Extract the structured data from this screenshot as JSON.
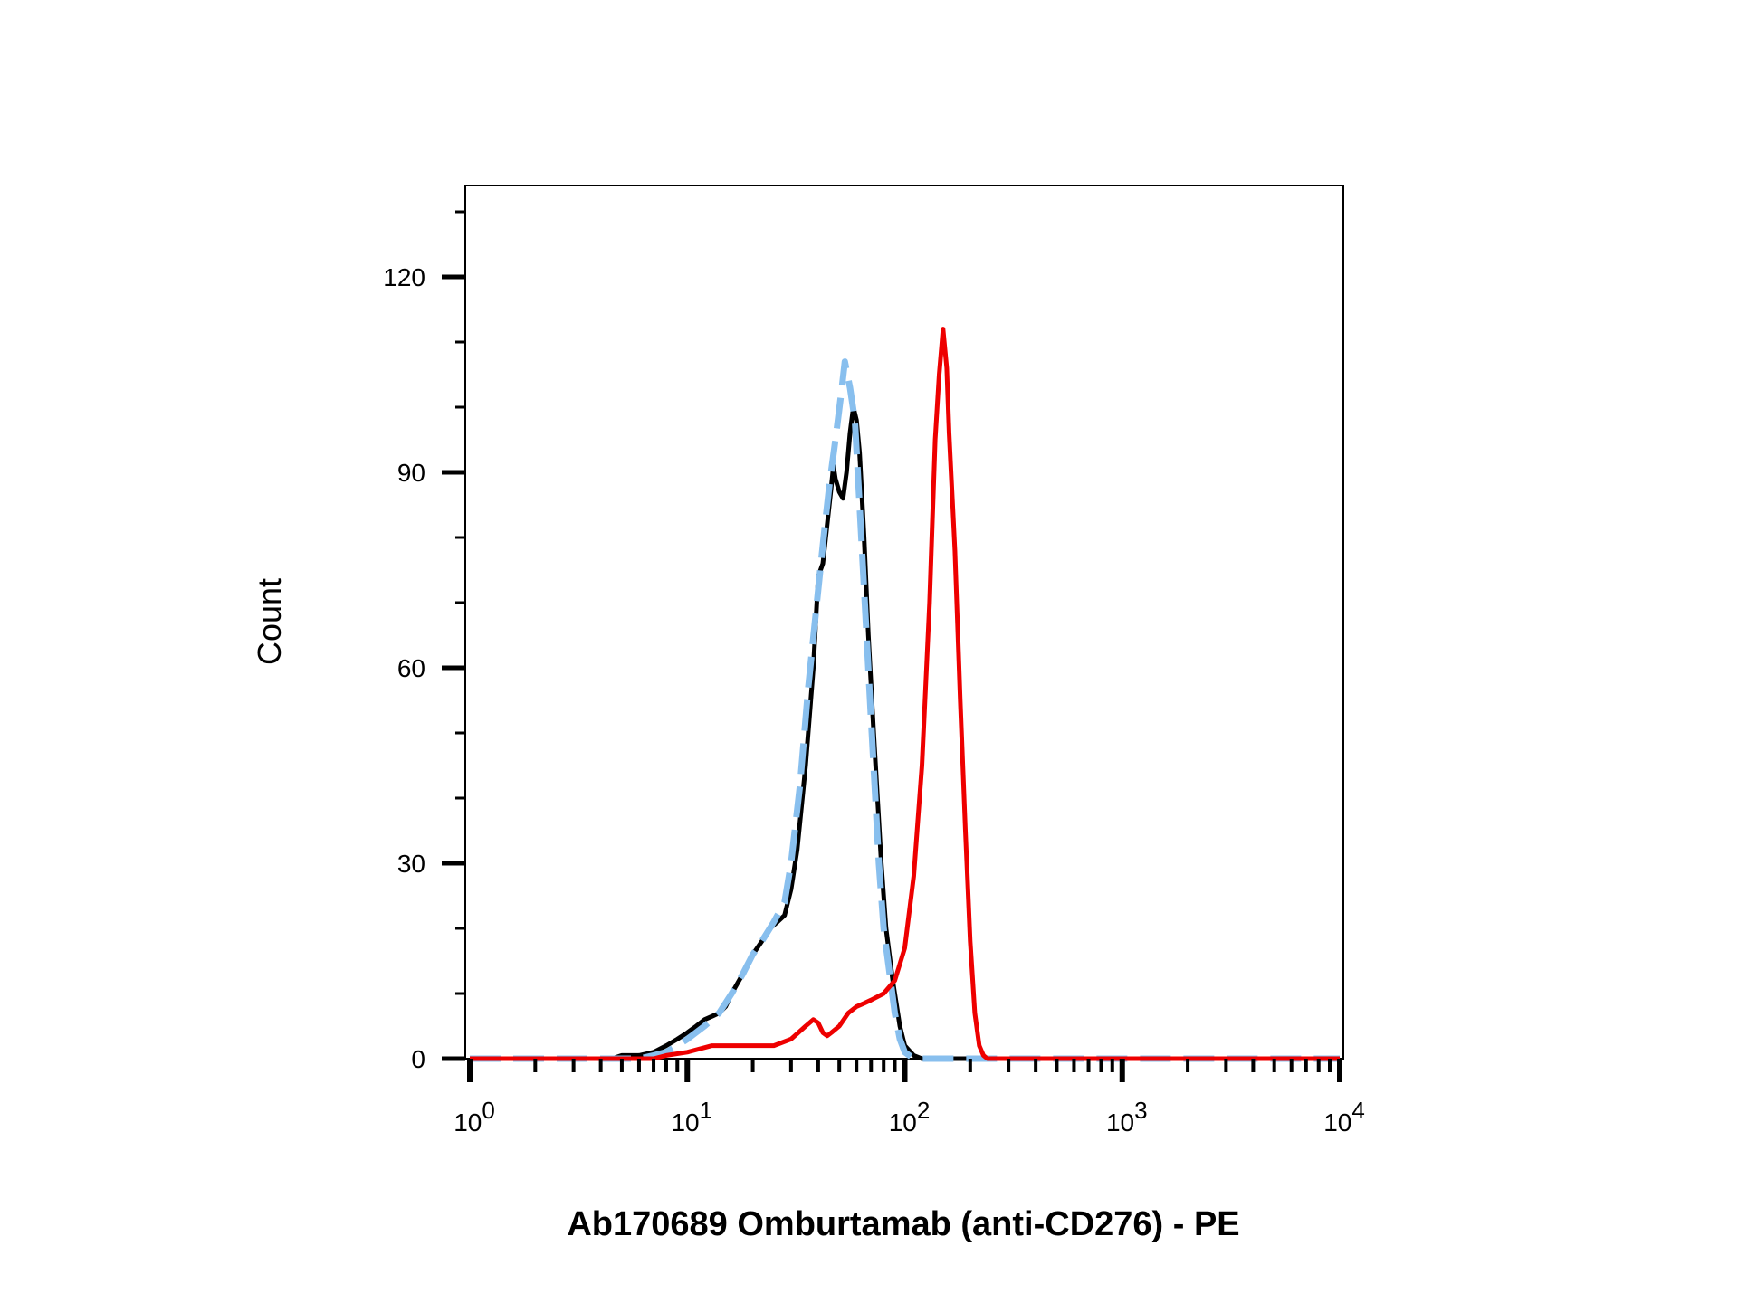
{
  "chart_data": {
    "type": "line",
    "title": "",
    "xlabel": "Ab170689 Omburtamab (anti-CD276) - PE",
    "ylabel": "Count",
    "x_scale": "log",
    "xlim": [
      1,
      10000
    ],
    "ylim": [
      0,
      135
    ],
    "x_ticks": [
      {
        "base": "10",
        "exp": "0"
      },
      {
        "base": "10",
        "exp": "1"
      },
      {
        "base": "10",
        "exp": "2"
      },
      {
        "base": "10",
        "exp": "3"
      },
      {
        "base": "10",
        "exp": "4"
      }
    ],
    "y_ticks": [
      "0",
      "30",
      "60",
      "90",
      "120"
    ],
    "y_tick_values": [
      0,
      30,
      60,
      90,
      120
    ],
    "grid": false,
    "legend": "none",
    "series": [
      {
        "color": "#000000",
        "style": "solid",
        "points": [
          [
            1,
            0
          ],
          [
            4.5,
            0
          ],
          [
            5,
            0.5
          ],
          [
            6,
            0.5
          ],
          [
            7,
            1
          ],
          [
            8,
            2
          ],
          [
            9,
            3
          ],
          [
            10,
            4
          ],
          [
            11,
            5
          ],
          [
            12,
            6
          ],
          [
            13,
            6.5
          ],
          [
            14,
            7
          ],
          [
            15,
            8
          ],
          [
            16,
            10
          ],
          [
            18,
            13
          ],
          [
            20,
            16
          ],
          [
            22,
            18
          ],
          [
            24,
            20
          ],
          [
            26,
            21
          ],
          [
            28,
            22
          ],
          [
            30,
            26
          ],
          [
            32,
            32
          ],
          [
            35,
            45
          ],
          [
            38,
            60
          ],
          [
            40,
            74
          ],
          [
            42,
            76
          ],
          [
            44,
            82
          ],
          [
            46,
            88
          ],
          [
            47,
            91
          ],
          [
            48,
            89
          ],
          [
            50,
            87
          ],
          [
            52,
            86
          ],
          [
            54,
            90
          ],
          [
            56,
            96
          ],
          [
            58,
            100
          ],
          [
            60,
            98
          ],
          [
            62,
            93
          ],
          [
            65,
            80
          ],
          [
            68,
            65
          ],
          [
            72,
            50
          ],
          [
            78,
            30
          ],
          [
            82,
            20
          ],
          [
            88,
            12
          ],
          [
            95,
            5
          ],
          [
            100,
            2
          ],
          [
            110,
            0.5
          ],
          [
            120,
            0
          ],
          [
            10000,
            0
          ]
        ]
      },
      {
        "color": "#88bfee",
        "style": "dashed",
        "points": [
          [
            1,
            0
          ],
          [
            6,
            0
          ],
          [
            7,
            0.5
          ],
          [
            8,
            1
          ],
          [
            9,
            2
          ],
          [
            10,
            3
          ],
          [
            12,
            5
          ],
          [
            14,
            7
          ],
          [
            16,
            10
          ],
          [
            18,
            13
          ],
          [
            20,
            16
          ],
          [
            22,
            18
          ],
          [
            25,
            21
          ],
          [
            28,
            24
          ],
          [
            30,
            30
          ],
          [
            33,
            42
          ],
          [
            36,
            57
          ],
          [
            40,
            72
          ],
          [
            43,
            82
          ],
          [
            45,
            88
          ],
          [
            48,
            95
          ],
          [
            51,
            102
          ],
          [
            53,
            107
          ],
          [
            56,
            103
          ],
          [
            59,
            98
          ],
          [
            62,
            85
          ],
          [
            65,
            72
          ],
          [
            70,
            52
          ],
          [
            76,
            30
          ],
          [
            80,
            20
          ],
          [
            86,
            12
          ],
          [
            90,
            7
          ],
          [
            95,
            3
          ],
          [
            100,
            1
          ],
          [
            110,
            0
          ],
          [
            10000,
            0
          ]
        ]
      },
      {
        "color": "#ee0000",
        "style": "solid",
        "points": [
          [
            1,
            0
          ],
          [
            7,
            0
          ],
          [
            8,
            0.5
          ],
          [
            10,
            1
          ],
          [
            13,
            2
          ],
          [
            16,
            2
          ],
          [
            20,
            2
          ],
          [
            25,
            2
          ],
          [
            30,
            3
          ],
          [
            35,
            5
          ],
          [
            38,
            6
          ],
          [
            40,
            5.5
          ],
          [
            42,
            4
          ],
          [
            44,
            3.5
          ],
          [
            46,
            4
          ],
          [
            50,
            5
          ],
          [
            55,
            7
          ],
          [
            60,
            8
          ],
          [
            65,
            8.5
          ],
          [
            70,
            9
          ],
          [
            80,
            10
          ],
          [
            90,
            12
          ],
          [
            100,
            17
          ],
          [
            110,
            28
          ],
          [
            120,
            45
          ],
          [
            130,
            70
          ],
          [
            138,
            95
          ],
          [
            144,
            105
          ],
          [
            150,
            112
          ],
          [
            156,
            106
          ],
          [
            160,
            96
          ],
          [
            170,
            78
          ],
          [
            180,
            55
          ],
          [
            190,
            35
          ],
          [
            200,
            18
          ],
          [
            210,
            7
          ],
          [
            220,
            2
          ],
          [
            230,
            0.5
          ],
          [
            240,
            0
          ],
          [
            10000,
            0
          ]
        ]
      }
    ]
  }
}
